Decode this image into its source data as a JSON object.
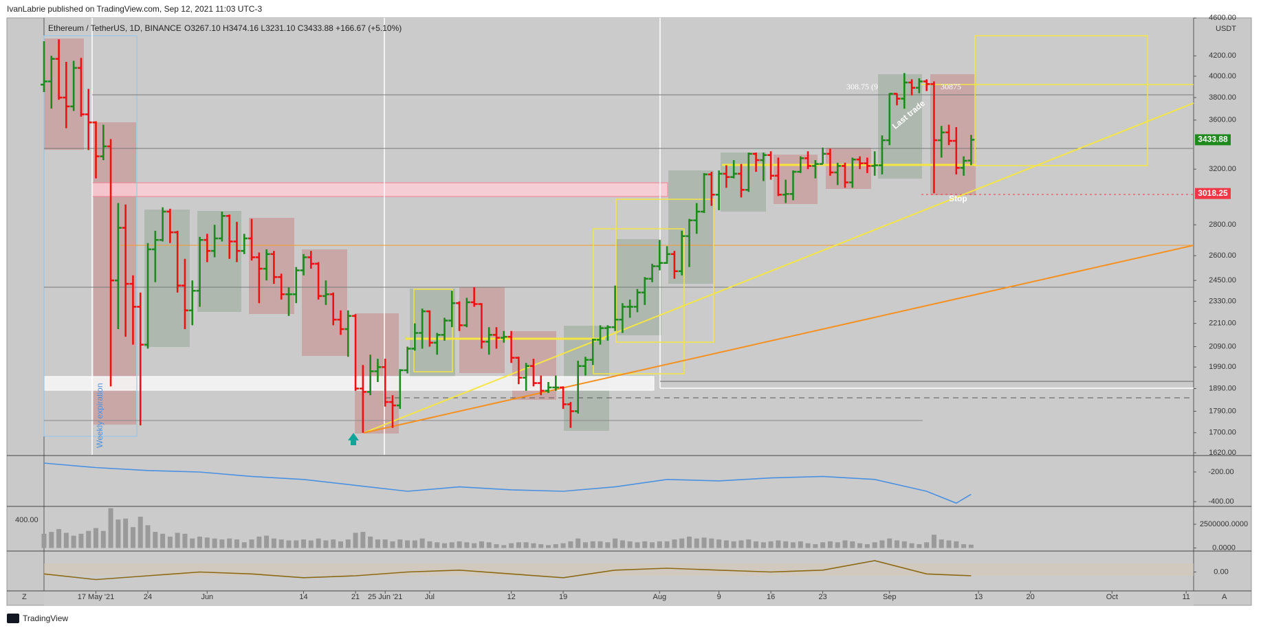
{
  "header": "IvanLabrie published on TradingView.com, Sep 12, 2021 11:03 UTC-3",
  "footer": "TradingView",
  "corner_left": "Z",
  "corner_right": "A",
  "chart_data": {
    "type": "ohlc",
    "title": "Ethereum / TetherUS, 1D, BINANCE",
    "legend_values": "O3267.10 H3474.16 L3231.10 C3433.88 +166.67 (+5.10%)",
    "currency": "USDT",
    "up_color": "#1e8a1e",
    "down_color": "#ee1111",
    "log_scale": true,
    "xlim": [
      "2021-05-10",
      "2021-10-12"
    ],
    "xticks": [
      {
        "value": "2021-05-17",
        "label": "17 May '21"
      },
      {
        "value": "2021-05-24",
        "label": "24"
      },
      {
        "value": "2021-06-01",
        "label": "Jun"
      },
      {
        "value": "2021-06-14",
        "label": "14"
      },
      {
        "value": "2021-06-21",
        "label": "21"
      },
      {
        "value": "2021-06-25",
        "label": "25 Jun '21"
      },
      {
        "value": "2021-07-01",
        "label": "Jul"
      },
      {
        "value": "2021-07-12",
        "label": "12"
      },
      {
        "value": "2021-07-19",
        "label": "19"
      },
      {
        "value": "2021-08-01",
        "label": "Aug"
      },
      {
        "value": "2021-08-09",
        "label": "9"
      },
      {
        "value": "2021-08-16",
        "label": "16"
      },
      {
        "value": "2021-08-23",
        "label": "23"
      },
      {
        "value": "2021-09-01",
        "label": "Sep"
      },
      {
        "value": "2021-09-13",
        "label": "13"
      },
      {
        "value": "2021-09-20",
        "label": "20"
      },
      {
        "value": "2021-10-01",
        "label": "Oct"
      },
      {
        "value": "2021-10-11",
        "label": "11"
      }
    ],
    "ylim": [
      1612,
      4601
    ],
    "yticks": [
      {
        "value": 4600,
        "label": "4600.00"
      },
      {
        "value": 4200,
        "label": "4200.00"
      },
      {
        "value": 4000,
        "label": "4000.00"
      },
      {
        "value": 3800,
        "label": "3800.00"
      },
      {
        "value": 3600,
        "label": "3600.00"
      },
      {
        "value": 3200,
        "label": "3200.00"
      },
      {
        "value": 2800,
        "label": "2800.00"
      },
      {
        "value": 2600,
        "label": "2600.00"
      },
      {
        "value": 2450,
        "label": "2450.00"
      },
      {
        "value": 2330,
        "label": "2330.00"
      },
      {
        "value": 2210,
        "label": "2210.00"
      },
      {
        "value": 2090,
        "label": "2090.00"
      },
      {
        "value": 1990,
        "label": "1990.00"
      },
      {
        "value": 1890,
        "label": "1890.00"
      },
      {
        "value": 1790,
        "label": "1790.00"
      },
      {
        "value": 1700,
        "label": "1700.00"
      },
      {
        "value": 1620,
        "label": "1620.00"
      }
    ],
    "price_marks": [
      3433.88,
      3018.25
    ],
    "price_mark_colors": [
      "#1e8a1e",
      "#f23645"
    ],
    "annotations": [
      "308.75 (9",
      "30875",
      "Last trade",
      "Stop",
      "Weekly expiration"
    ],
    "x": [
      "2021-05-10",
      "2021-05-11",
      "2021-05-12",
      "2021-05-13",
      "2021-05-14",
      "2021-05-15",
      "2021-05-16",
      "2021-05-17",
      "2021-05-18",
      "2021-05-19",
      "2021-05-20",
      "2021-05-21",
      "2021-05-22",
      "2021-05-23",
      "2021-05-24",
      "2021-05-25",
      "2021-05-26",
      "2021-05-27",
      "2021-05-28",
      "2021-05-29",
      "2021-05-30",
      "2021-05-31",
      "2021-06-01",
      "2021-06-02",
      "2021-06-03",
      "2021-06-04",
      "2021-06-05",
      "2021-06-06",
      "2021-06-07",
      "2021-06-08",
      "2021-06-09",
      "2021-06-10",
      "2021-06-11",
      "2021-06-12",
      "2021-06-13",
      "2021-06-14",
      "2021-06-15",
      "2021-06-16",
      "2021-06-17",
      "2021-06-18",
      "2021-06-19",
      "2021-06-20",
      "2021-06-21",
      "2021-06-22",
      "2021-06-23",
      "2021-06-24",
      "2021-06-25",
      "2021-06-26",
      "2021-06-27",
      "2021-06-28",
      "2021-06-29",
      "2021-06-30",
      "2021-07-01",
      "2021-07-02",
      "2021-07-03",
      "2021-07-04",
      "2021-07-05",
      "2021-07-06",
      "2021-07-07",
      "2021-07-08",
      "2021-07-09",
      "2021-07-10",
      "2021-07-11",
      "2021-07-12",
      "2021-07-13",
      "2021-07-14",
      "2021-07-15",
      "2021-07-16",
      "2021-07-17",
      "2021-07-18",
      "2021-07-19",
      "2021-07-20",
      "2021-07-21",
      "2021-07-22",
      "2021-07-23",
      "2021-07-24",
      "2021-07-25",
      "2021-07-26",
      "2021-07-27",
      "2021-07-28",
      "2021-07-29",
      "2021-07-30",
      "2021-07-31",
      "2021-08-01",
      "2021-08-02",
      "2021-08-03",
      "2021-08-04",
      "2021-08-05",
      "2021-08-06",
      "2021-08-07",
      "2021-08-08",
      "2021-08-09",
      "2021-08-10",
      "2021-08-11",
      "2021-08-12",
      "2021-08-13",
      "2021-08-14",
      "2021-08-15",
      "2021-08-16",
      "2021-08-17",
      "2021-08-18",
      "2021-08-19",
      "2021-08-20",
      "2021-08-21",
      "2021-08-22",
      "2021-08-23",
      "2021-08-24",
      "2021-08-25",
      "2021-08-26",
      "2021-08-27",
      "2021-08-28",
      "2021-08-29",
      "2021-08-30",
      "2021-08-31",
      "2021-09-01",
      "2021-09-02",
      "2021-09-03",
      "2021-09-04",
      "2021-09-05",
      "2021-09-06",
      "2021-09-07",
      "2021-09-08",
      "2021-09-09",
      "2021-09-10",
      "2021-09-11",
      "2021-09-12"
    ],
    "ohlc": [
      [
        3920,
        4350,
        3850,
        3950
      ],
      [
        3950,
        4200,
        3700,
        4170
      ],
      [
        4170,
        4370,
        3780,
        3800
      ],
      [
        3800,
        4140,
        3530,
        3720
      ],
      [
        3720,
        4150,
        3680,
        4080
      ],
      [
        4080,
        4180,
        3630,
        3650
      ],
      [
        3650,
        3880,
        3350,
        3580
      ],
      [
        3580,
        3590,
        3130,
        3300
      ],
      [
        3300,
        3560,
        3270,
        3380
      ],
      [
        3380,
        3440,
        1900,
        2450
      ],
      [
        2450,
        2950,
        2180,
        2780
      ],
      [
        2780,
        2940,
        2140,
        2430
      ],
      [
        2430,
        2480,
        2100,
        2300
      ],
      [
        2300,
        2380,
        1730,
        2100
      ],
      [
        2100,
        2680,
        2080,
        2640
      ],
      [
        2640,
        2760,
        2440,
        2700
      ],
      [
        2700,
        2920,
        2690,
        2890
      ],
      [
        2890,
        2910,
        2680,
        2750
      ],
      [
        2750,
        2760,
        2380,
        2420
      ],
      [
        2420,
        2580,
        2180,
        2280
      ],
      [
        2280,
        2450,
        2200,
        2390
      ],
      [
        2390,
        2720,
        2300,
        2700
      ],
      [
        2700,
        2740,
        2560,
        2630
      ],
      [
        2630,
        2800,
        2590,
        2710
      ],
      [
        2710,
        2890,
        2690,
        2860
      ],
      [
        2860,
        2870,
        2580,
        2690
      ],
      [
        2690,
        2820,
        2560,
        2630
      ],
      [
        2630,
        2740,
        2610,
        2710
      ],
      [
        2710,
        2840,
        2570,
        2590
      ],
      [
        2590,
        2620,
        2320,
        2520
      ],
      [
        2520,
        2640,
        2450,
        2610
      ],
      [
        2610,
        2630,
        2430,
        2470
      ],
      [
        2470,
        2490,
        2340,
        2370
      ],
      [
        2370,
        2410,
        2250,
        2370
      ],
      [
        2370,
        2530,
        2320,
        2510
      ],
      [
        2510,
        2610,
        2480,
        2590
      ],
      [
        2590,
        2630,
        2520,
        2550
      ],
      [
        2550,
        2560,
        2340,
        2360
      ],
      [
        2360,
        2450,
        2310,
        2370
      ],
      [
        2370,
        2380,
        2200,
        2230
      ],
      [
        2230,
        2280,
        2150,
        2180
      ],
      [
        2180,
        2280,
        2040,
        2250
      ],
      [
        2250,
        2260,
        1880,
        1890
      ],
      [
        1890,
        2000,
        1700,
        1875
      ],
      [
        1875,
        2050,
        1860,
        1970
      ],
      [
        1970,
        2030,
        1920,
        1990
      ],
      [
        1990,
        2030,
        1810,
        1830
      ],
      [
        1830,
        1860,
        1720,
        1815
      ],
      [
        1815,
        1980,
        1800,
        1975
      ],
      [
        1975,
        2090,
        1960,
        2080
      ],
      [
        2080,
        2210,
        2070,
        2160
      ],
      [
        2160,
        2290,
        2080,
        2275
      ],
      [
        2275,
        2280,
        2090,
        2110
      ],
      [
        2110,
        2160,
        2050,
        2150
      ],
      [
        2150,
        2240,
        2120,
        2225
      ],
      [
        2225,
        2390,
        2190,
        2320
      ],
      [
        2320,
        2330,
        2170,
        2200
      ],
      [
        2200,
        2350,
        2190,
        2325
      ],
      [
        2325,
        2410,
        2300,
        2315
      ],
      [
        2315,
        2320,
        2080,
        2115
      ],
      [
        2115,
        2190,
        2050,
        2150
      ],
      [
        2150,
        2190,
        2080,
        2135
      ],
      [
        2135,
        2170,
        2110,
        2140
      ],
      [
        2140,
        2170,
        2010,
        2035
      ],
      [
        2035,
        2040,
        1910,
        1940
      ],
      [
        1940,
        2010,
        1880,
        1995
      ],
      [
        1995,
        2030,
        1900,
        1915
      ],
      [
        1915,
        1950,
        1860,
        1880
      ],
      [
        1880,
        1920,
        1870,
        1895
      ],
      [
        1895,
        1950,
        1880,
        1895
      ],
      [
        1895,
        1900,
        1800,
        1820
      ],
      [
        1820,
        1830,
        1720,
        1790
      ],
      [
        1790,
        2020,
        1780,
        1995
      ],
      [
        1995,
        2040,
        1950,
        2025
      ],
      [
        2025,
        2130,
        2000,
        2125
      ],
      [
        2125,
        2200,
        2100,
        2185
      ],
      [
        2185,
        2200,
        2120,
        2190
      ],
      [
        2190,
        2420,
        2170,
        2230
      ],
      [
        2230,
        2320,
        2160,
        2300
      ],
      [
        2300,
        2340,
        2240,
        2300
      ],
      [
        2300,
        2400,
        2270,
        2380
      ],
      [
        2380,
        2470,
        2310,
        2460
      ],
      [
        2460,
        2550,
        2440,
        2535
      ],
      [
        2535,
        2700,
        2510,
        2555
      ],
      [
        2555,
        2660,
        2550,
        2610
      ],
      [
        2610,
        2630,
        2460,
        2505
      ],
      [
        2505,
        2760,
        2480,
        2725
      ],
      [
        2725,
        2840,
        2530,
        2830
      ],
      [
        2830,
        2950,
        2740,
        2890
      ],
      [
        2890,
        3170,
        2880,
        3160
      ],
      [
        3160,
        3180,
        2930,
        3010
      ],
      [
        3010,
        3190,
        2900,
        3165
      ],
      [
        3165,
        3230,
        3060,
        3140
      ],
      [
        3140,
        3270,
        3130,
        3165
      ],
      [
        3165,
        3240,
        2990,
        3045
      ],
      [
        3045,
        3330,
        3030,
        3320
      ],
      [
        3320,
        3330,
        3180,
        3270
      ],
      [
        3270,
        3330,
        3110,
        3310
      ],
      [
        3310,
        3340,
        3120,
        3150
      ],
      [
        3150,
        3290,
        3000,
        3010
      ],
      [
        3010,
        3120,
        2950,
        3015
      ],
      [
        3015,
        3190,
        2970,
        3180
      ],
      [
        3180,
        3300,
        3170,
        3285
      ],
      [
        3285,
        3340,
        3200,
        3225
      ],
      [
        3225,
        3270,
        3130,
        3240
      ],
      [
        3240,
        3370,
        3240,
        3320
      ],
      [
        3320,
        3360,
        3150,
        3175
      ],
      [
        3175,
        3250,
        3080,
        3225
      ],
      [
        3225,
        3250,
        3060,
        3100
      ],
      [
        3100,
        3290,
        3060,
        3275
      ],
      [
        3275,
        3300,
        3200,
        3245
      ],
      [
        3245,
        3290,
        3170,
        3225
      ],
      [
        3225,
        3340,
        3150,
        3230
      ],
      [
        3230,
        3470,
        3160,
        3430
      ],
      [
        3430,
        3840,
        3390,
        3835
      ],
      [
        3835,
        3840,
        3730,
        3790
      ],
      [
        3790,
        4030,
        3700,
        3940
      ],
      [
        3940,
        3970,
        3820,
        3890
      ],
      [
        3890,
        3980,
        3840,
        3950
      ],
      [
        3950,
        3970,
        3860,
        3925
      ],
      [
        3925,
        3950,
        3020,
        3430
      ],
      [
        3430,
        3550,
        3290,
        3495
      ],
      [
        3495,
        3560,
        3390,
        3425
      ],
      [
        3425,
        3540,
        3160,
        3210
      ],
      [
        3210,
        3300,
        3150,
        3265
      ],
      [
        3267.1,
        3474.16,
        3231.1,
        3433.88
      ]
    ],
    "volume": {
      "color": "#9a9a9a",
      "ylim": [
        -250000,
        4240000
      ],
      "yticks": [
        {
          "value": 2500000,
          "label": "2500000.0000"
        },
        {
          "value": 0,
          "label": "0.0000"
        }
      ],
      "side_label": "400.00",
      "values": [
        1500000,
        1700000,
        2000000,
        1600000,
        1300000,
        1500000,
        1800000,
        2100000,
        1800000,
        4200000,
        3000000,
        3100000,
        2200000,
        3300000,
        2400000,
        1700000,
        1500000,
        1200000,
        1600000,
        1500000,
        1000000,
        1200000,
        1100000,
        1000000,
        900000,
        1000000,
        900000,
        600000,
        900000,
        1200000,
        1300000,
        1000000,
        900000,
        800000,
        800000,
        900000,
        800000,
        1000000,
        800000,
        900000,
        700000,
        900000,
        1600000,
        1700000,
        1200000,
        900000,
        900000,
        700000,
        900000,
        800000,
        800000,
        1000000,
        700000,
        600000,
        500000,
        600000,
        700000,
        600000,
        500000,
        700000,
        600000,
        400000,
        300000,
        500000,
        600000,
        600000,
        500000,
        400000,
        300000,
        400000,
        500000,
        700000,
        1000000,
        600000,
        700000,
        700000,
        600000,
        1000000,
        800000,
        700000,
        600000,
        700000,
        600000,
        700000,
        700000,
        900000,
        1000000,
        1200000,
        1000000,
        1100000,
        1000000,
        900000,
        800000,
        700000,
        800000,
        900000,
        700000,
        600000,
        700000,
        800000,
        700000,
        600000,
        700000,
        500000,
        400000,
        600000,
        700000,
        600000,
        800000,
        700000,
        500000,
        400000,
        600000,
        800000,
        1000000,
        800000,
        700000,
        500000,
        400000,
        600000,
        1400000,
        900000,
        800000,
        700000,
        400000,
        350000
      ]
    },
    "indicator": {
      "color": "#4a90e2",
      "ylim": [
        -427,
        -103
      ],
      "yticks": [
        {
          "value": -200,
          "label": "-200.00"
        },
        {
          "value": -400,
          "label": "-400.00"
        }
      ],
      "x": [
        "2021-05-10",
        "2021-05-17",
        "2021-05-24",
        "2021-05-31",
        "2021-06-07",
        "2021-06-14",
        "2021-06-21",
        "2021-06-28",
        "2021-07-05",
        "2021-07-12",
        "2021-07-19",
        "2021-07-26",
        "2021-08-02",
        "2021-08-09",
        "2021-08-16",
        "2021-08-23",
        "2021-08-30",
        "2021-09-06",
        "2021-09-10",
        "2021-09-12"
      ],
      "values": [
        -140,
        -170,
        -190,
        -200,
        -230,
        -250,
        -290,
        -330,
        -300,
        -320,
        -330,
        -300,
        -250,
        -260,
        -240,
        -230,
        -250,
        -330,
        -410,
        -350
      ]
    },
    "oscillator": {
      "color": "#8b6914",
      "ylim": [
        -100,
        100
      ],
      "yticks": [
        {
          "value": 0,
          "label": "0.00"
        }
      ],
      "x": [
        "2021-05-10",
        "2021-05-17",
        "2021-05-24",
        "2021-05-31",
        "2021-06-07",
        "2021-06-14",
        "2021-06-21",
        "2021-06-28",
        "2021-07-05",
        "2021-07-12",
        "2021-07-19",
        "2021-07-26",
        "2021-08-02",
        "2021-08-09",
        "2021-08-16",
        "2021-08-23",
        "2021-08-30",
        "2021-09-06",
        "2021-09-12"
      ],
      "values": [
        -10,
        -40,
        -20,
        0,
        -10,
        -30,
        -20,
        0,
        10,
        -10,
        -30,
        10,
        20,
        10,
        0,
        10,
        60,
        -10,
        -20
      ]
    }
  }
}
